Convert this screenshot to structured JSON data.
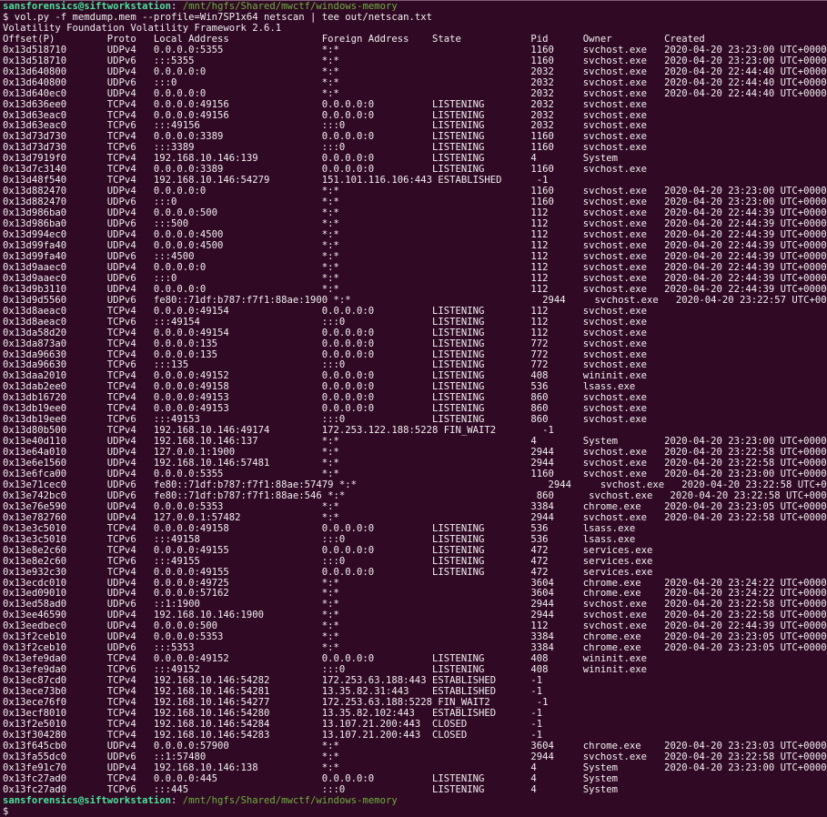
{
  "terminal": {
    "prompt": {
      "user_host": "sansforensics@siftworkstation",
      "separator": ": ",
      "cwd": "/mnt/hgfs/Shared/mwctf/windows-memory",
      "symbol": "$"
    },
    "command": "$ vol.py -f memdump.mem --profile=Win7SP1x64 netscan | tee out/netscan.txt",
    "version_line": "Volatility Foundation Volatility Framework 2.6.1",
    "colors": {
      "background": "#300a24",
      "foreground": "#f2eef1",
      "user_host": "#49e29b",
      "cwd_path": "#6fae3e",
      "top_border": "#86607b"
    },
    "table": {
      "headers": [
        "Offset(P)",
        "Proto",
        "Local Address",
        "Foreign Address",
        "State",
        "Pid",
        "Owner",
        "Created"
      ],
      "rows": [
        [
          "0x13d518710",
          "UDPv4",
          "0.0.0.0:5355",
          "*:*",
          "",
          "1160",
          "svchost.exe",
          "2020-04-20 23:23:00 UTC+0000"
        ],
        [
          "0x13d518710",
          "UDPv6",
          ":::5355",
          "*:*",
          "",
          "1160",
          "svchost.exe",
          "2020-04-20 23:23:00 UTC+0000"
        ],
        [
          "0x13d640800",
          "UDPv4",
          "0.0.0.0:0",
          "*:*",
          "",
          "2032",
          "svchost.exe",
          "2020-04-20 22:44:40 UTC+0000"
        ],
        [
          "0x13d640800",
          "UDPv6",
          ":::0",
          "*:*",
          "",
          "2032",
          "svchost.exe",
          "2020-04-20 22:44:40 UTC+0000"
        ],
        [
          "0x13d640ec0",
          "UDPv4",
          "0.0.0.0:0",
          "*:*",
          "",
          "2032",
          "svchost.exe",
          "2020-04-20 22:44:40 UTC+0000"
        ],
        [
          "0x13d636ee0",
          "TCPv4",
          "0.0.0.0:49156",
          "0.0.0.0:0",
          "LISTENING",
          "2032",
          "svchost.exe",
          ""
        ],
        [
          "0x13d63eac0",
          "TCPv4",
          "0.0.0.0:49156",
          "0.0.0.0:0",
          "LISTENING",
          "2032",
          "svchost.exe",
          ""
        ],
        [
          "0x13d63eac0",
          "TCPv6",
          ":::49156",
          ":::0",
          "LISTENING",
          "2032",
          "svchost.exe",
          ""
        ],
        [
          "0x13d73d730",
          "TCPv4",
          "0.0.0.0:3389",
          "0.0.0.0:0",
          "LISTENING",
          "1160",
          "svchost.exe",
          ""
        ],
        [
          "0x13d73d730",
          "TCPv6",
          ":::3389",
          ":::0",
          "LISTENING",
          "1160",
          "svchost.exe",
          ""
        ],
        [
          "0x13d7919f0",
          "TCPv4",
          "192.168.10.146:139",
          "0.0.0.0:0",
          "LISTENING",
          "4",
          "System",
          ""
        ],
        [
          "0x13d7c3140",
          "TCPv4",
          "0.0.0.0:3389",
          "0.0.0.0:0",
          "LISTENING",
          "1160",
          "svchost.exe",
          ""
        ],
        [
          "0x13d48f540",
          "TCPv4",
          "192.168.10.146:54279",
          "151.101.116.106:443",
          "ESTABLISHED",
          "-1",
          "",
          ""
        ],
        [
          "0x13d882470",
          "UDPv4",
          "0.0.0.0:0",
          "*:*",
          "",
          "1160",
          "svchost.exe",
          "2020-04-20 23:23:00 UTC+0000"
        ],
        [
          "0x13d882470",
          "UDPv6",
          ":::0",
          "*:*",
          "",
          "1160",
          "svchost.exe",
          "2020-04-20 23:23:00 UTC+0000"
        ],
        [
          "0x13d986ba0",
          "UDPv4",
          "0.0.0.0:500",
          "*:*",
          "",
          "112",
          "svchost.exe",
          "2020-04-20 22:44:39 UTC+0000"
        ],
        [
          "0x13d986ba0",
          "UDPv6",
          ":::500",
          "*:*",
          "",
          "112",
          "svchost.exe",
          "2020-04-20 22:44:39 UTC+0000"
        ],
        [
          "0x13d994ec0",
          "UDPv4",
          "0.0.0.0:4500",
          "*:*",
          "",
          "112",
          "svchost.exe",
          "2020-04-20 22:44:39 UTC+0000"
        ],
        [
          "0x13d99fa40",
          "UDPv4",
          "0.0.0.0:4500",
          "*:*",
          "",
          "112",
          "svchost.exe",
          "2020-04-20 22:44:39 UTC+0000"
        ],
        [
          "0x13d99fa40",
          "UDPv6",
          ":::4500",
          "*:*",
          "",
          "112",
          "svchost.exe",
          "2020-04-20 22:44:39 UTC+0000"
        ],
        [
          "0x13d9aaec0",
          "UDPv4",
          "0.0.0.0:0",
          "*:*",
          "",
          "112",
          "svchost.exe",
          "2020-04-20 22:44:39 UTC+0000"
        ],
        [
          "0x13d9aaec0",
          "UDPv6",
          ":::0",
          "*:*",
          "",
          "112",
          "svchost.exe",
          "2020-04-20 22:44:39 UTC+0000"
        ],
        [
          "0x13d9b3110",
          "UDPv4",
          "0.0.0.0:0",
          "*:*",
          "",
          "112",
          "svchost.exe",
          "2020-04-20 22:44:39 UTC+0000"
        ],
        [
          "0x13d9d5560",
          "UDPv6",
          "fe80::71df:b787:f7f1:88ae:1900",
          "*:*",
          "",
          "2944",
          "svchost.exe",
          "2020-04-20 23:22:57 UTC+0000"
        ],
        [
          "0x13d8aeac0",
          "TCPv4",
          "0.0.0.0:49154",
          "0.0.0.0:0",
          "LISTENING",
          "112",
          "svchost.exe",
          ""
        ],
        [
          "0x13d8aeac0",
          "TCPv6",
          ":::49154",
          ":::0",
          "LISTENING",
          "112",
          "svchost.exe",
          ""
        ],
        [
          "0x13da58d20",
          "TCPv4",
          "0.0.0.0:49154",
          "0.0.0.0:0",
          "LISTENING",
          "112",
          "svchost.exe",
          ""
        ],
        [
          "0x13da873a0",
          "TCPv4",
          "0.0.0.0:135",
          "0.0.0.0:0",
          "LISTENING",
          "772",
          "svchost.exe",
          ""
        ],
        [
          "0x13da96630",
          "TCPv4",
          "0.0.0.0:135",
          "0.0.0.0:0",
          "LISTENING",
          "772",
          "svchost.exe",
          ""
        ],
        [
          "0x13da96630",
          "TCPv6",
          ":::135",
          ":::0",
          "LISTENING",
          "772",
          "svchost.exe",
          ""
        ],
        [
          "0x13daa2010",
          "TCPv4",
          "0.0.0.0:49152",
          "0.0.0.0:0",
          "LISTENING",
          "408",
          "wininit.exe",
          ""
        ],
        [
          "0x13dab2ee0",
          "TCPv4",
          "0.0.0.0:49158",
          "0.0.0.0:0",
          "LISTENING",
          "536",
          "lsass.exe",
          ""
        ],
        [
          "0x13db16720",
          "TCPv4",
          "0.0.0.0:49153",
          "0.0.0.0:0",
          "LISTENING",
          "860",
          "svchost.exe",
          ""
        ],
        [
          "0x13db19ee0",
          "TCPv4",
          "0.0.0.0:49153",
          "0.0.0.0:0",
          "LISTENING",
          "860",
          "svchost.exe",
          ""
        ],
        [
          "0x13db19ee0",
          "TCPv6",
          ":::49153",
          ":::0",
          "LISTENING",
          "860",
          "svchost.exe",
          ""
        ],
        [
          "0x13d80b500",
          "TCPv4",
          "192.168.10.146:49174",
          "172.253.122.188:5228",
          "FIN_WAIT2",
          "-1",
          "",
          ""
        ],
        [
          "0x13e40d110",
          "UDPv4",
          "192.168.10.146:137",
          "*:*",
          "",
          "4",
          "System",
          "2020-04-20 23:23:00 UTC+0000"
        ],
        [
          "0x13e64a010",
          "UDPv4",
          "127.0.0.1:1900",
          "*:*",
          "",
          "2944",
          "svchost.exe",
          "2020-04-20 23:22:58 UTC+0000"
        ],
        [
          "0x13e6e1560",
          "UDPv4",
          "192.168.10.146:57481",
          "*:*",
          "",
          "2944",
          "svchost.exe",
          "2020-04-20 23:22:58 UTC+0000"
        ],
        [
          "0x13e6fca00",
          "UDPv4",
          "0.0.0.0:5355",
          "*:*",
          "",
          "1160",
          "svchost.exe",
          "2020-04-20 23:23:00 UTC+0000"
        ],
        [
          "0x13e71cec0",
          "UDPv6",
          "fe80::71df:b787:f7f1:88ae:57479",
          "*:*",
          "",
          "2944",
          "svchost.exe",
          "2020-04-20 23:22:58 UTC+0000"
        ],
        [
          "0x13e742bc0",
          "UDPv6",
          "fe80::71df:b787:f7f1:88ae:546",
          "*:*",
          "",
          "860",
          "svchost.exe",
          "2020-04-20 23:22:58 UTC+0000"
        ],
        [
          "0x13e76e590",
          "UDPv4",
          "0.0.0.0:5353",
          "*:*",
          "",
          "3384",
          "chrome.exe",
          "2020-04-20 23:23:05 UTC+0000"
        ],
        [
          "0x13e782760",
          "UDPv4",
          "127.0.0.1:57482",
          "*:*",
          "",
          "2944",
          "svchost.exe",
          "2020-04-20 23:22:58 UTC+0000"
        ],
        [
          "0x13e3c5010",
          "TCPv4",
          "0.0.0.0:49158",
          "0.0.0.0:0",
          "LISTENING",
          "536",
          "lsass.exe",
          ""
        ],
        [
          "0x13e3c5010",
          "TCPv6",
          ":::49158",
          ":::0",
          "LISTENING",
          "536",
          "lsass.exe",
          ""
        ],
        [
          "0x13e8e2c60",
          "TCPv4",
          "0.0.0.0:49155",
          "0.0.0.0:0",
          "LISTENING",
          "472",
          "services.exe",
          ""
        ],
        [
          "0x13e8e2c60",
          "TCPv6",
          ":::49155",
          ":::0",
          "LISTENING",
          "472",
          "services.exe",
          ""
        ],
        [
          "0x13e932c30",
          "TCPv4",
          "0.0.0.0:49155",
          "0.0.0.0:0",
          "LISTENING",
          "472",
          "services.exe",
          ""
        ],
        [
          "0x13ecdc010",
          "UDPv4",
          "0.0.0.0:49725",
          "*:*",
          "",
          "3604",
          "chrome.exe",
          "2020-04-20 23:24:22 UTC+0000"
        ],
        [
          "0x13ed09010",
          "UDPv4",
          "0.0.0.0:57162",
          "*:*",
          "",
          "3604",
          "chrome.exe",
          "2020-04-20 23:24:22 UTC+0000"
        ],
        [
          "0x13ed58ad0",
          "UDPv6",
          "::1:1900",
          "*:*",
          "",
          "2944",
          "svchost.exe",
          "2020-04-20 23:22:58 UTC+0000"
        ],
        [
          "0x13ee46590",
          "UDPv4",
          "192.168.10.146:1900",
          "*:*",
          "",
          "2944",
          "svchost.exe",
          "2020-04-20 23:22:58 UTC+0000"
        ],
        [
          "0x13eedbec0",
          "UDPv4",
          "0.0.0.0:500",
          "*:*",
          "",
          "112",
          "svchost.exe",
          "2020-04-20 22:44:39 UTC+0000"
        ],
        [
          "0x13f2ceb10",
          "UDPv4",
          "0.0.0.0:5353",
          "*:*",
          "",
          "3384",
          "chrome.exe",
          "2020-04-20 23:23:05 UTC+0000"
        ],
        [
          "0x13f2ceb10",
          "UDPv6",
          ":::5353",
          "*:*",
          "",
          "3384",
          "chrome.exe",
          "2020-04-20 23:23:05 UTC+0000"
        ],
        [
          "0x13efe9da0",
          "TCPv4",
          "0.0.0.0:49152",
          "0.0.0.0:0",
          "LISTENING",
          "408",
          "wininit.exe",
          ""
        ],
        [
          "0x13efe9da0",
          "TCPv6",
          ":::49152",
          ":::0",
          "LISTENING",
          "408",
          "wininit.exe",
          ""
        ],
        [
          "0x13ec87cd0",
          "TCPv4",
          "192.168.10.146:54282",
          "172.253.63.188:443",
          "ESTABLISHED",
          "-1",
          "",
          ""
        ],
        [
          "0x13ece73b0",
          "TCPv4",
          "192.168.10.146:54281",
          "13.35.82.31:443",
          "ESTABLISHED",
          "-1",
          "",
          ""
        ],
        [
          "0x13ece76f0",
          "TCPv4",
          "192.168.10.146:54277",
          "172.253.63.188:5228",
          "FIN_WAIT2",
          "-1",
          "",
          ""
        ],
        [
          "0x13ecf8010",
          "TCPv4",
          "192.168.10.146:54280",
          "13.35.82.102:443",
          "ESTABLISHED",
          "-1",
          "",
          ""
        ],
        [
          "0x13f2e5010",
          "TCPv4",
          "192.168.10.146:54284",
          "13.107.21.200:443",
          "CLOSED",
          "-1",
          "",
          ""
        ],
        [
          "0x13f304280",
          "TCPv4",
          "192.168.10.146:54283",
          "13.107.21.200:443",
          "CLOSED",
          "-1",
          "",
          ""
        ],
        [
          "0x13f645cb0",
          "UDPv4",
          "0.0.0.0:57900",
          "*:*",
          "",
          "3604",
          "chrome.exe",
          "2020-04-20 23:23:03 UTC+0000"
        ],
        [
          "0x13fa55dc0",
          "UDPv6",
          "::1:57480",
          "*:*",
          "",
          "2944",
          "svchost.exe",
          "2020-04-20 23:22:58 UTC+0000"
        ],
        [
          "0x13fe91c70",
          "UDPv4",
          "192.168.10.146:138",
          "*:*",
          "",
          "4",
          "System",
          "2020-04-20 23:23:00 UTC+0000"
        ],
        [
          "0x13fc27ad0",
          "TCPv4",
          "0.0.0.0:445",
          "0.0.0.0:0",
          "LISTENING",
          "4",
          "System",
          ""
        ],
        [
          "0x13fc27ad0",
          "TCPv6",
          ":::445",
          ":::0",
          "LISTENING",
          "4",
          "System",
          ""
        ]
      ]
    }
  }
}
